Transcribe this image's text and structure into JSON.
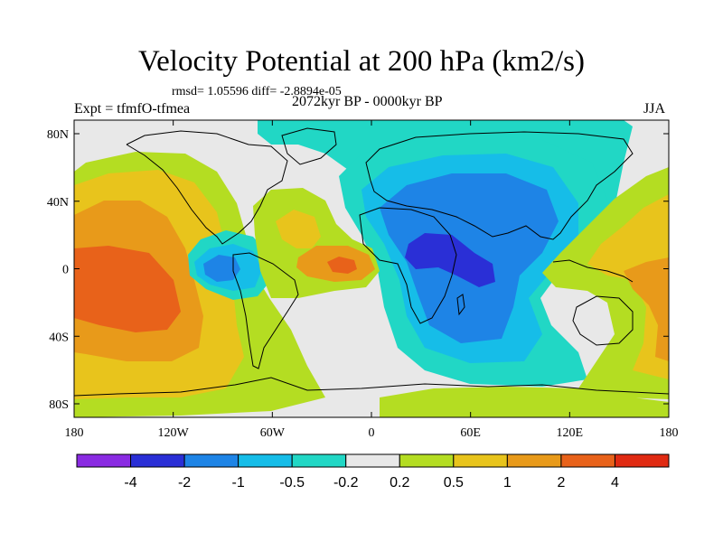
{
  "title": "Velocity Potential at 200 hPa (km2/s)",
  "stats": "rmsd= 1.05596 diff= -2.8894e-05",
  "experiment": "Expt = tfmfO-tfmea",
  "period": "2072kyr BP - 0000kyr BP",
  "season": "JJA",
  "axes": {
    "x_ticks": [
      "180",
      "120W",
      "60W",
      "0",
      "60E",
      "120E",
      "180"
    ],
    "y_ticks": [
      "80N",
      "40N",
      "0",
      "40S",
      "80S"
    ]
  },
  "colorbar": {
    "colors": [
      "#8a2be2",
      "#2a2fd6",
      "#1e84e6",
      "#16bde8",
      "#21d7c5",
      "#e8e8e8",
      "#b4dd22",
      "#e8c41c",
      "#e89a1a",
      "#e8621a",
      "#e02a12"
    ],
    "labels": [
      "-4",
      "-2",
      "-1",
      "-0.5",
      "-0.2",
      "0.2",
      "0.5",
      "1",
      "2",
      "4"
    ]
  },
  "map": {
    "background": "#e8e8e8",
    "regions": [
      {
        "name": "pacific-positive-outer",
        "color": "#b4dd22"
      },
      {
        "name": "pacific-positive-mid",
        "color": "#e8c41c"
      },
      {
        "name": "pacific-positive-inner",
        "color": "#e89a1a"
      },
      {
        "name": "pacific-positive-core",
        "color": "#e8621a"
      },
      {
        "name": "north-polar-negative",
        "color": "#21d7c5"
      },
      {
        "name": "africa-negative-outer",
        "color": "#21d7c5"
      },
      {
        "name": "africa-negative-mid",
        "color": "#16bde8"
      },
      {
        "name": "africa-negative-inner",
        "color": "#1e84e6"
      },
      {
        "name": "africa-negative-core",
        "color": "#2a2fd6"
      },
      {
        "name": "central-america-negative-outer",
        "color": "#21d7c5"
      },
      {
        "name": "central-america-negative-inner",
        "color": "#16bde8"
      },
      {
        "name": "central-america-negative-core",
        "color": "#1e84e6"
      },
      {
        "name": "atlantic-positive-outer",
        "color": "#b4dd22"
      },
      {
        "name": "atlantic-positive-mid",
        "color": "#e8c41c"
      },
      {
        "name": "atlantic-positive-inner",
        "color": "#e89a1a"
      },
      {
        "name": "atlantic-positive-core",
        "color": "#e8621a"
      },
      {
        "name": "west-pacific-positive-outer",
        "color": "#b4dd22"
      },
      {
        "name": "west-pacific-positive-mid",
        "color": "#e8c41c"
      },
      {
        "name": "west-pacific-positive-inner",
        "color": "#e89a1a"
      },
      {
        "name": "southern-ocean-positive",
        "color": "#b4dd22"
      }
    ]
  }
}
